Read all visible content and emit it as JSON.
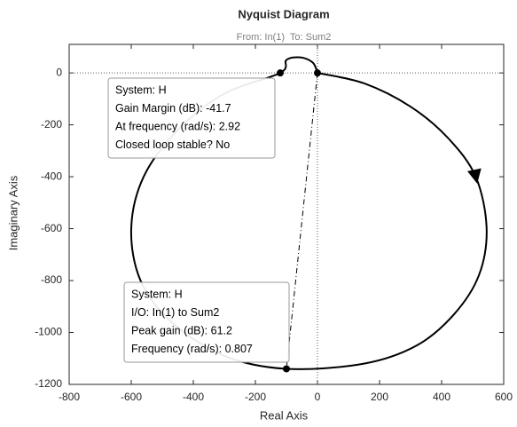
{
  "chart_data": {
    "type": "line",
    "title": "Nyquist Diagram",
    "subtitle": "From: In(1)  To: Sum2",
    "x_label": "Real Axis",
    "y_label": "Imaginary Axis",
    "x": [
      0,
      150,
      300,
      420,
      510,
      545,
      520,
      440,
      320,
      150,
      -100,
      -300,
      -470,
      -570,
      -600,
      -560,
      -450,
      -300,
      -120,
      -100,
      -55,
      -15,
      0
    ],
    "series": [
      {
        "name": "H",
        "color": "#000000",
        "values": [
          0,
          -40,
          -130,
          -250,
          -400,
          -600,
          -780,
          -930,
          -1050,
          -1120,
          -1140,
          -1090,
          -960,
          -800,
          -600,
          -400,
          -220,
          -80,
          0,
          50,
          60,
          40,
          0
        ]
      }
    ],
    "markers": {
      "x": [
        0,
        -120,
        -100
      ],
      "y": [
        0,
        0,
        -1140
      ]
    },
    "xlim": [
      -800,
      600
    ],
    "ylim": [
      -1200,
      110
    ],
    "xticks": [
      -800,
      -600,
      -400,
      -200,
      0,
      200,
      400,
      600
    ],
    "yticks": [
      -1200,
      -1000,
      -800,
      -600,
      -400,
      -200,
      0
    ],
    "datatips": [
      {
        "marker": 1,
        "lines": [
          "System: H",
          "Gain Margin (dB): -41.7",
          "At frequency (rad/s): 2.92",
          "Closed loop stable? No"
        ]
      },
      {
        "marker": 2,
        "lines": [
          "System: H",
          "I/O: In(1) to Sum2",
          "Peak gain (dB): 61.2",
          "Frequency (rad/s): 0.807"
        ]
      }
    ]
  }
}
